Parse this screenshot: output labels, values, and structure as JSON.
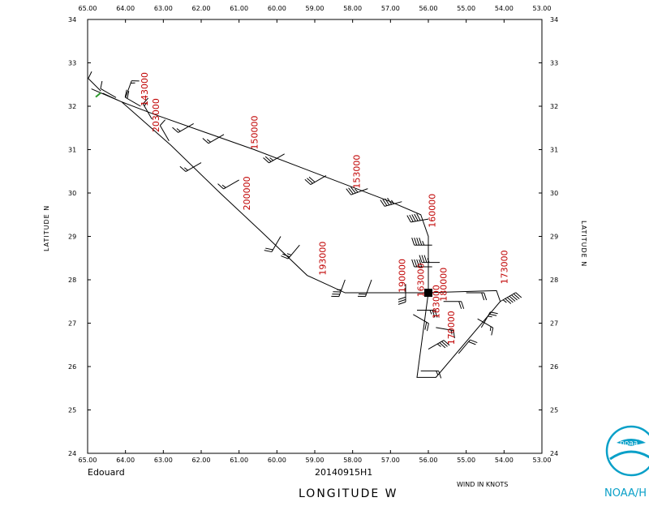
{
  "storm_name": "Edouard",
  "flight_id": "20140915H1",
  "wind_units_note": "WIND IN KNOTS",
  "x_axis_title": "LONGITUDE   W",
  "y_axis_title": "LATITUDE   N",
  "noaa_logo_text": "noaa",
  "noaa_caption": "NOAA/H",
  "colors": {
    "line": "#000000",
    "time_label": "#c00000",
    "noaa_blue": "#0aa0c8",
    "start_marker": "#2e9b2e"
  },
  "chart_data": {
    "type": "scatter",
    "xlim": [
      65.0,
      53.0
    ],
    "ylim": [
      24,
      34
    ],
    "x_ticks": [
      "65.00",
      "64.00",
      "63.00",
      "62.00",
      "61.00",
      "60.00",
      "59.00",
      "58.00",
      "57.00",
      "56.00",
      "55.00",
      "54.00",
      "53.00"
    ],
    "y_ticks": [
      "24",
      "25",
      "26",
      "27",
      "28",
      "29",
      "30",
      "31",
      "32",
      "33",
      "34"
    ],
    "grid": false,
    "track": [
      [
        64.9,
        32.4
      ],
      [
        64.1,
        32.1
      ],
      [
        62.8,
        31.1
      ],
      [
        61.5,
        30.0
      ],
      [
        60.4,
        29.1
      ],
      [
        59.2,
        28.1
      ],
      [
        58.2,
        27.7
      ],
      [
        56.1,
        27.7
      ],
      [
        54.2,
        27.75
      ],
      [
        54.1,
        27.5
      ],
      [
        55.8,
        25.75
      ],
      [
        56.3,
        25.75
      ],
      [
        56.0,
        27.7
      ],
      [
        56.0,
        29.0
      ],
      [
        56.2,
        29.5
      ],
      [
        57.0,
        29.8
      ],
      [
        60.6,
        31.0
      ],
      [
        63.2,
        31.8
      ],
      [
        64.1,
        32.1
      ],
      [
        64.6,
        32.3
      ]
    ],
    "time_labels": [
      {
        "text": "143000",
        "lon": 63.5,
        "lat": 32.0
      },
      {
        "text": "203000",
        "lon": 63.2,
        "lat": 31.4
      },
      {
        "text": "150000",
        "lon": 60.6,
        "lat": 31.0
      },
      {
        "text": "200000",
        "lon": 60.8,
        "lat": 29.6
      },
      {
        "text": "153000",
        "lon": 57.9,
        "lat": 30.1
      },
      {
        "text": "160000",
        "lon": 55.9,
        "lat": 29.2
      },
      {
        "text": "193000",
        "lon": 58.8,
        "lat": 28.1
      },
      {
        "text": "190000",
        "lon": 56.7,
        "lat": 27.7
      },
      {
        "text": "163000",
        "lon": 56.2,
        "lat": 27.6
      },
      {
        "text": "180000",
        "lon": 55.6,
        "lat": 27.5
      },
      {
        "text": "173000",
        "lon": 54.0,
        "lat": 27.9
      },
      {
        "text": "183000",
        "lon": 55.8,
        "lat": 27.1
      },
      {
        "text": "170000",
        "lon": 55.4,
        "lat": 26.5
      }
    ],
    "wind_barbs": [
      {
        "lon": 64.65,
        "lat": 32.35,
        "dir": 315,
        "speed": 10
      },
      {
        "lon": 64.25,
        "lat": 32.2,
        "dir": 300,
        "speed": 10
      },
      {
        "lon": 64.0,
        "lat": 32.2,
        "dir": 20,
        "speed": 15
      },
      {
        "lon": 63.6,
        "lat": 32.0,
        "dir": 300,
        "speed": 20
      },
      {
        "lon": 63.3,
        "lat": 31.7,
        "dir": 330,
        "speed": 15
      },
      {
        "lon": 62.85,
        "lat": 31.2,
        "dir": 330,
        "speed": 10
      },
      {
        "lon": 62.2,
        "lat": 31.6,
        "dir": 240,
        "speed": 15
      },
      {
        "lon": 61.4,
        "lat": 31.35,
        "dir": 240,
        "speed": 15
      },
      {
        "lon": 62.0,
        "lat": 30.7,
        "dir": 240,
        "speed": 15
      },
      {
        "lon": 61.0,
        "lat": 30.3,
        "dir": 240,
        "speed": 15
      },
      {
        "lon": 59.8,
        "lat": 30.9,
        "dir": 240,
        "speed": 25
      },
      {
        "lon": 59.9,
        "lat": 29.0,
        "dir": 210,
        "speed": 20
      },
      {
        "lon": 59.4,
        "lat": 28.8,
        "dir": 220,
        "speed": 25
      },
      {
        "lon": 58.7,
        "lat": 30.4,
        "dir": 240,
        "speed": 30
      },
      {
        "lon": 57.6,
        "lat": 30.1,
        "dir": 250,
        "speed": 35
      },
      {
        "lon": 56.7,
        "lat": 29.8,
        "dir": 255,
        "speed": 45
      },
      {
        "lon": 56.0,
        "lat": 29.4,
        "dir": 260,
        "speed": 50
      },
      {
        "lon": 55.9,
        "lat": 28.8,
        "dir": 270,
        "speed": 45
      },
      {
        "lon": 55.9,
        "lat": 28.3,
        "dir": 270,
        "speed": 40
      },
      {
        "lon": 55.7,
        "lat": 28.4,
        "dir": 270,
        "speed": 35
      },
      {
        "lon": 56.6,
        "lat": 27.9,
        "dir": 180,
        "speed": 30
      },
      {
        "lon": 57.5,
        "lat": 28.0,
        "dir": 200,
        "speed": 20
      },
      {
        "lon": 58.2,
        "lat": 28.0,
        "dir": 200,
        "speed": 35
      },
      {
        "lon": 56.3,
        "lat": 27.3,
        "dir": 90,
        "speed": 25
      },
      {
        "lon": 55.6,
        "lat": 27.5,
        "dir": 90,
        "speed": 20
      },
      {
        "lon": 55.0,
        "lat": 27.7,
        "dir": 90,
        "speed": 20
      },
      {
        "lon": 54.7,
        "lat": 27.1,
        "dir": 120,
        "speed": 15
      },
      {
        "lon": 54.1,
        "lat": 27.5,
        "dir": 60,
        "speed": 65
      },
      {
        "lon": 54.6,
        "lat": 26.9,
        "dir": 30,
        "speed": 25
      },
      {
        "lon": 55.2,
        "lat": 26.3,
        "dir": 40,
        "speed": 20
      },
      {
        "lon": 56.0,
        "lat": 26.4,
        "dir": 60,
        "speed": 35
      },
      {
        "lon": 56.2,
        "lat": 25.9,
        "dir": 90,
        "speed": 15
      },
      {
        "lon": 56.4,
        "lat": 27.2,
        "dir": 120,
        "speed": 20
      },
      {
        "lon": 55.8,
        "lat": 26.9,
        "dir": 100,
        "speed": 15
      }
    ],
    "center_marker": {
      "lon": 56.0,
      "lat": 27.7
    },
    "start_marker": {
      "lon": 64.7,
      "lat": 32.25
    }
  }
}
